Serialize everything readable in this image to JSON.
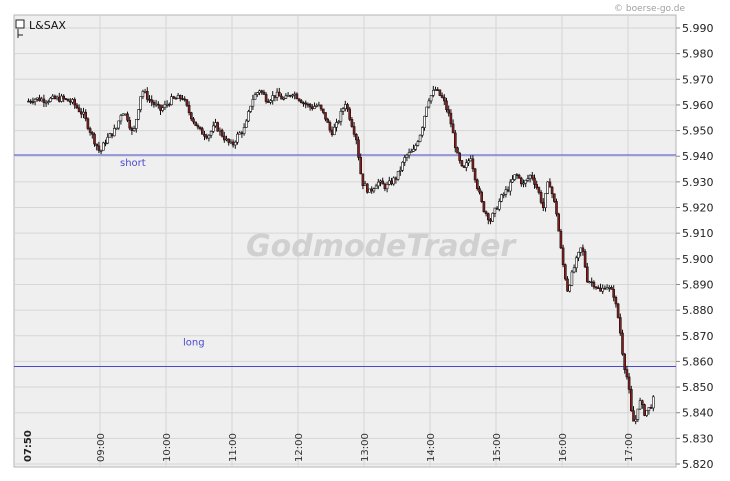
{
  "source": "© boerse-go.de",
  "watermark": "GodmodeTrader",
  "colors": {
    "up": "#ffffff",
    "down": "#8b1a1a",
    "level_line": "#4a4ad0",
    "plot_bg": "#efefef"
  },
  "chart_data": {
    "type": "candlestick",
    "title": "L&SAX",
    "ylim": [
      5.82,
      5.995
    ],
    "y_ticks": [
      "5.820",
      "5.830",
      "5.840",
      "5.850",
      "5.860",
      "5.870",
      "5.880",
      "5.890",
      "5.900",
      "5.910",
      "5.920",
      "5.930",
      "5.940",
      "5.950",
      "5.960",
      "5.970",
      "5.980",
      "5.990"
    ],
    "x_range": [
      "07:50",
      "17:50"
    ],
    "x_ticks": [
      "07:50",
      "09:00",
      "10:00",
      "11:00",
      "12:00",
      "13:00",
      "14:00",
      "15:00",
      "16:00",
      "17:00"
    ],
    "grid": true,
    "levels": [
      {
        "name": "short",
        "value": 5.9405
      },
      {
        "name": "long",
        "value": 5.858
      }
    ],
    "close_path": [
      [
        "07:55",
        5.9615
      ],
      [
        "08:00",
        5.9625
      ],
      [
        "08:10",
        5.962
      ],
      [
        "08:25",
        5.9625
      ],
      [
        "08:35",
        5.961
      ],
      [
        "08:45",
        5.956
      ],
      [
        "08:55",
        5.946
      ],
      [
        "09:00",
        5.9415
      ],
      [
        "09:05",
        5.946
      ],
      [
        "09:15",
        5.951
      ],
      [
        "09:20",
        5.958
      ],
      [
        "09:25",
        5.955
      ],
      [
        "09:30",
        5.948
      ],
      [
        "09:38",
        5.966
      ],
      [
        "09:45",
        5.962
      ],
      [
        "09:55",
        5.958
      ],
      [
        "10:05",
        5.962
      ],
      [
        "10:15",
        5.963
      ],
      [
        "10:20",
        5.958
      ],
      [
        "10:30",
        5.95
      ],
      [
        "10:38",
        5.948
      ],
      [
        "10:45",
        5.952
      ],
      [
        "10:50",
        5.949
      ],
      [
        "10:55",
        5.946
      ],
      [
        "11:00",
        5.944
      ],
      [
        "11:05",
        5.948
      ],
      [
        "11:12",
        5.951
      ],
      [
        "11:18",
        5.962
      ],
      [
        "11:25",
        5.966
      ],
      [
        "11:32",
        5.962
      ],
      [
        "11:40",
        5.964
      ],
      [
        "11:48",
        5.962
      ],
      [
        "11:55",
        5.965
      ],
      [
        "12:05",
        5.961
      ],
      [
        "12:12",
        5.959
      ],
      [
        "12:18",
        5.96
      ],
      [
        "12:25",
        5.955
      ],
      [
        "12:30",
        5.949
      ],
      [
        "12:35",
        5.952
      ],
      [
        "12:43",
        5.961
      ],
      [
        "12:48",
        5.954
      ],
      [
        "12:53",
        5.947
      ],
      [
        "12:58",
        5.93
      ],
      [
        "13:05",
        5.926
      ],
      [
        "13:12",
        5.93
      ],
      [
        "13:20",
        5.928
      ],
      [
        "13:30",
        5.932
      ],
      [
        "13:38",
        5.94
      ],
      [
        "13:45",
        5.942
      ],
      [
        "13:52",
        5.95
      ],
      [
        "13:58",
        5.962
      ],
      [
        "14:05",
        5.966
      ],
      [
        "14:12",
        5.962
      ],
      [
        "14:18",
        5.955
      ],
      [
        "14:25",
        5.94
      ],
      [
        "14:30",
        5.934
      ],
      [
        "14:37",
        5.94
      ],
      [
        "14:42",
        5.93
      ],
      [
        "14:48",
        5.92
      ],
      [
        "14:55",
        5.915
      ],
      [
        "15:05",
        5.924
      ],
      [
        "15:12",
        5.928
      ],
      [
        "15:18",
        5.933
      ],
      [
        "15:25",
        5.929
      ],
      [
        "15:32",
        5.933
      ],
      [
        "15:38",
        5.927
      ],
      [
        "15:43",
        5.92
      ],
      [
        "15:48",
        5.931
      ],
      [
        "15:55",
        5.918
      ],
      [
        "16:00",
        5.9
      ],
      [
        "16:05",
        5.888
      ],
      [
        "16:12",
        5.898
      ],
      [
        "16:18",
        5.905
      ],
      [
        "16:23",
        5.892
      ],
      [
        "16:30",
        5.89
      ],
      [
        "16:35",
        5.887
      ],
      [
        "16:40",
        5.89
      ],
      [
        "16:47",
        5.886
      ],
      [
        "16:52",
        5.875
      ],
      [
        "16:56",
        5.86
      ],
      [
        "17:00",
        5.852
      ],
      [
        "17:03",
        5.84
      ],
      [
        "17:06",
        5.835
      ],
      [
        "17:10",
        5.845
      ],
      [
        "17:15",
        5.84
      ],
      [
        "17:20",
        5.842
      ],
      [
        "17:25",
        5.847
      ]
    ]
  }
}
